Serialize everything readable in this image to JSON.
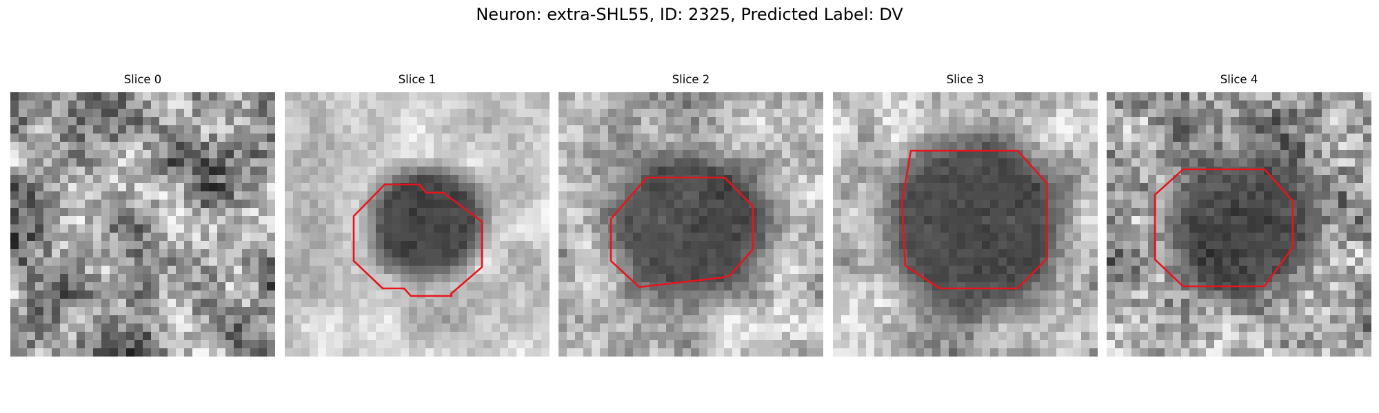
{
  "figure": {
    "title": "Neuron: extra-SHL55, ID: 2325, Predicted Label: DV"
  },
  "colormap": "gray",
  "contour_color": "#e8141c",
  "panels": [
    {
      "title": "Slice 0",
      "has_contour": false
    },
    {
      "title": "Slice 1",
      "has_contour": true
    },
    {
      "title": "Slice 2",
      "has_contour": true
    },
    {
      "title": "Slice 3",
      "has_contour": true
    },
    {
      "title": "Slice 4",
      "has_contour": true
    }
  ]
}
